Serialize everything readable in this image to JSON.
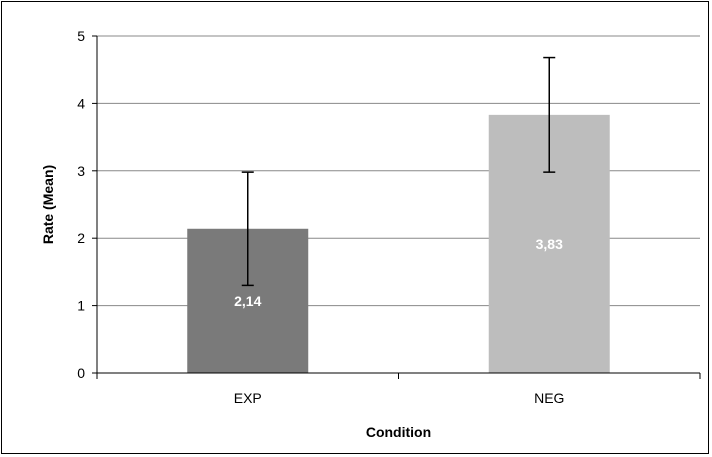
{
  "chart_data": {
    "type": "bar",
    "categories": [
      "EXP",
      "NEG"
    ],
    "values": [
      2.14,
      3.83
    ],
    "value_labels": [
      "2,14",
      "3,83"
    ],
    "error_bars": {
      "lower": [
        1.3,
        2.98
      ],
      "upper": [
        2.98,
        4.68
      ]
    },
    "bar_colors": [
      "#7a7a7a",
      "#bdbdbd"
    ],
    "gridline_color": "#888888",
    "xlabel": "Condition",
    "ylabel": "Rate (Mean)",
    "ylim": [
      0,
      5
    ],
    "yticks": [
      "0",
      "1",
      "2",
      "3",
      "4",
      "5"
    ],
    "grid": true,
    "legend": "none"
  }
}
